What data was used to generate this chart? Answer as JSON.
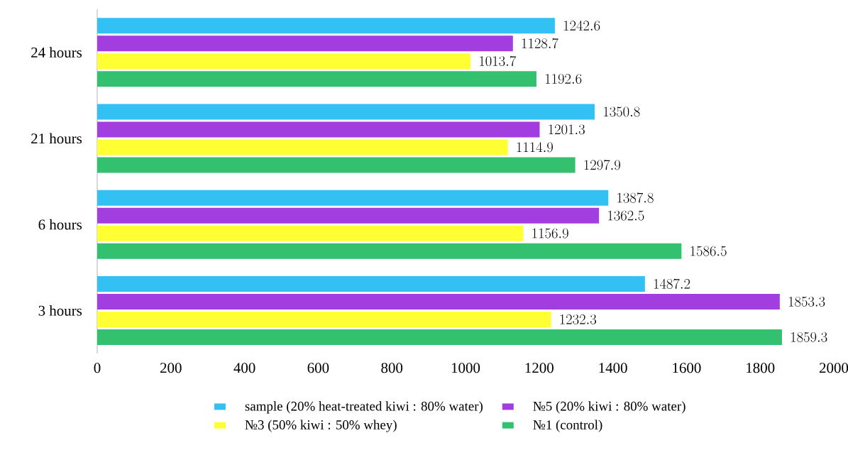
{
  "chart_data": {
    "type": "bar",
    "orientation": "horizontal",
    "categories": [
      "24 hours",
      "21 hours",
      "6 hours",
      "3 hours"
    ],
    "series": [
      {
        "name": "sample (20% heat-treated kiwi : 80% water)",
        "color": "#33c1f3",
        "values": [
          1242.6,
          1350.8,
          1387.8,
          1487.2
        ]
      },
      {
        "name": "№5 (20% kiwi : 80% water)",
        "color": "#a23de0",
        "values": [
          1128.7,
          1201.3,
          1362.5,
          1853.3
        ]
      },
      {
        "name": "№3 (50% kiwi : 50% whey)",
        "color": "#ffff33",
        "values": [
          1013.7,
          1114.9,
          1156.9,
          1232.3
        ]
      },
      {
        "name": "№1 (control)",
        "color": "#33c170",
        "values": [
          1192.6,
          1297.9,
          1586.5,
          1859.3
        ]
      }
    ],
    "xlim": [
      0,
      2000
    ],
    "xticks": [
      0,
      200,
      400,
      600,
      800,
      1000,
      1200,
      1400,
      1600,
      1800,
      2000
    ],
    "data_labels": true,
    "legend": "bottom",
    "grid": false
  }
}
